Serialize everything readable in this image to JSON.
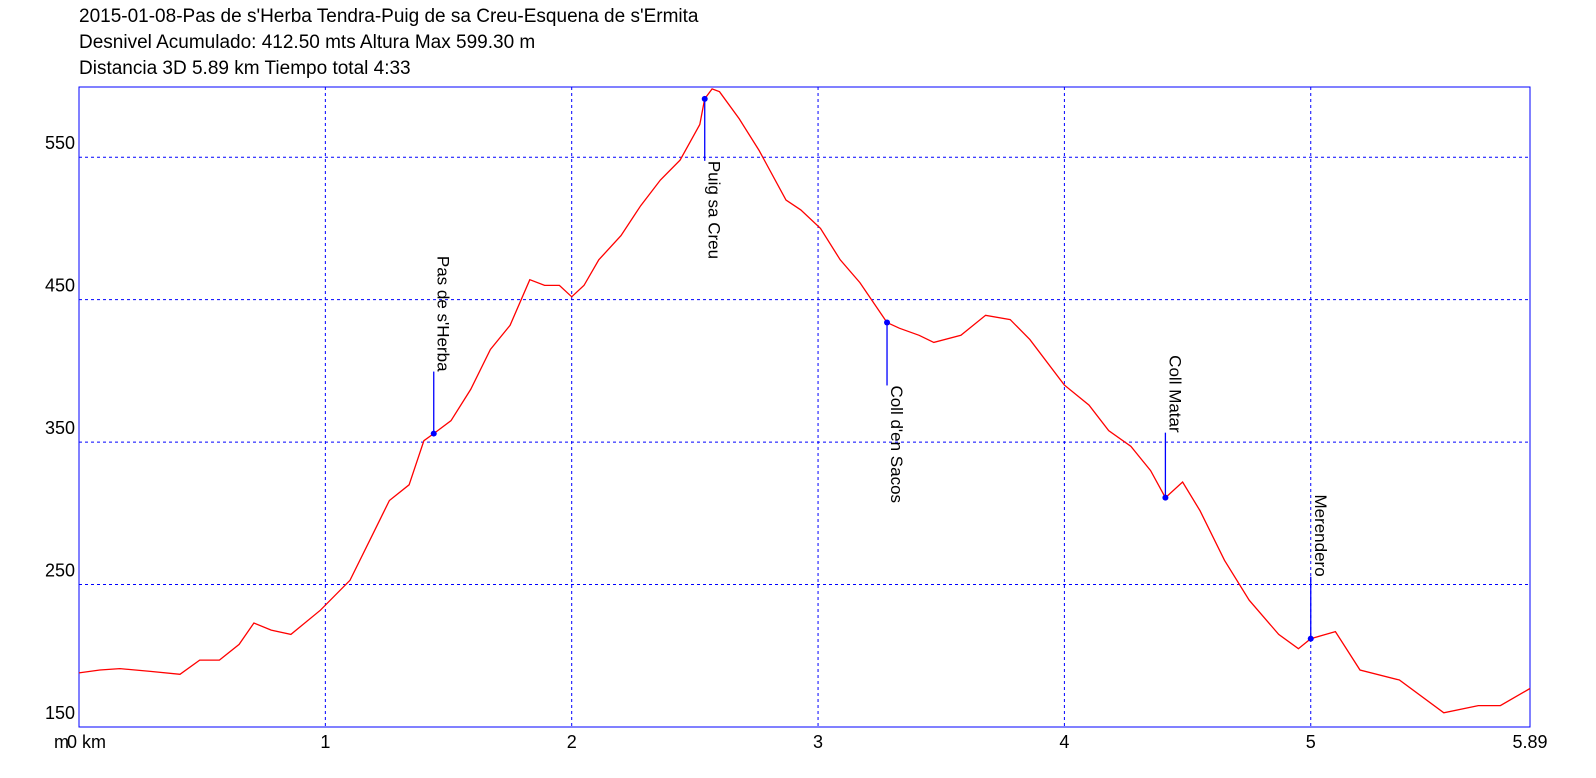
{
  "chart_data": {
    "type": "line",
    "title": "2015-01-08-Pas de s'Herba Tendra-Puig de sa Creu-Esquena de s'Ermita",
    "subtitle": [
      "Desnivel Acumulado: 412.50 mts  Altura Max 599.30 m",
      "Distancia 3D 5.89 km  Tiempo total 4:33"
    ],
    "y_label": "m",
    "color": "#ff0000",
    "grid_color": "#0000ff",
    "marker_color": "#0000ff",
    "grid": true,
    "xlim": [
      0,
      5.89
    ],
    "ylim": [
      150,
      599.3
    ],
    "xticks": [
      {
        "value": 0,
        "label": "0 km"
      },
      1,
      2,
      3,
      4,
      5,
      5.89
    ],
    "yticks": [
      150,
      250,
      350,
      450,
      550
    ],
    "x": [
      0,
      0.085,
      0.166,
      0.29,
      0.41,
      0.49,
      0.57,
      0.65,
      0.71,
      0.78,
      0.86,
      0.98,
      1.1,
      1.18,
      1.26,
      1.34,
      1.4,
      1.44,
      1.51,
      1.59,
      1.67,
      1.75,
      1.83,
      1.89,
      1.95,
      2.0,
      2.05,
      2.11,
      2.2,
      2.28,
      2.36,
      2.44,
      2.52,
      2.54,
      2.57,
      2.6,
      2.68,
      2.76,
      2.87,
      2.93,
      3.01,
      3.09,
      3.17,
      3.28,
      3.33,
      3.41,
      3.47,
      3.58,
      3.68,
      3.78,
      3.86,
      4.0,
      4.1,
      4.18,
      4.27,
      4.35,
      4.41,
      4.48,
      4.55,
      4.65,
      4.75,
      4.87,
      4.95,
      5.0,
      5.1,
      5.2,
      5.36,
      5.54,
      5.68,
      5.77,
      5.89
    ],
    "values": [
      188,
      190,
      191,
      189,
      187,
      197,
      197,
      208,
      223,
      218,
      215,
      232,
      253,
      281,
      309,
      320,
      351,
      356,
      365,
      387,
      415,
      432,
      464,
      460,
      460,
      452,
      460,
      478,
      495,
      516,
      534,
      548,
      573,
      591,
      598,
      596,
      577,
      555,
      520,
      513,
      500,
      478,
      462,
      434,
      430,
      425,
      420,
      425,
      439,
      436,
      422,
      390,
      376,
      358,
      347,
      330,
      311,
      322,
      302,
      267,
      239,
      215,
      205,
      212,
      217,
      190,
      183,
      160,
      165,
      165,
      177
    ],
    "waypoints": [
      {
        "name": "Pas de s'Herba",
        "x": 1.44,
        "y": 356
      },
      {
        "name": "Puig sa Creu",
        "x": 2.54,
        "y": 591
      },
      {
        "name": "Coll d'en Sacos",
        "x": 3.28,
        "y": 434
      },
      {
        "name": "Coll Matar",
        "x": 4.41,
        "y": 311
      },
      {
        "name": "Merendero",
        "x": 5.0,
        "y": 212
      }
    ]
  }
}
